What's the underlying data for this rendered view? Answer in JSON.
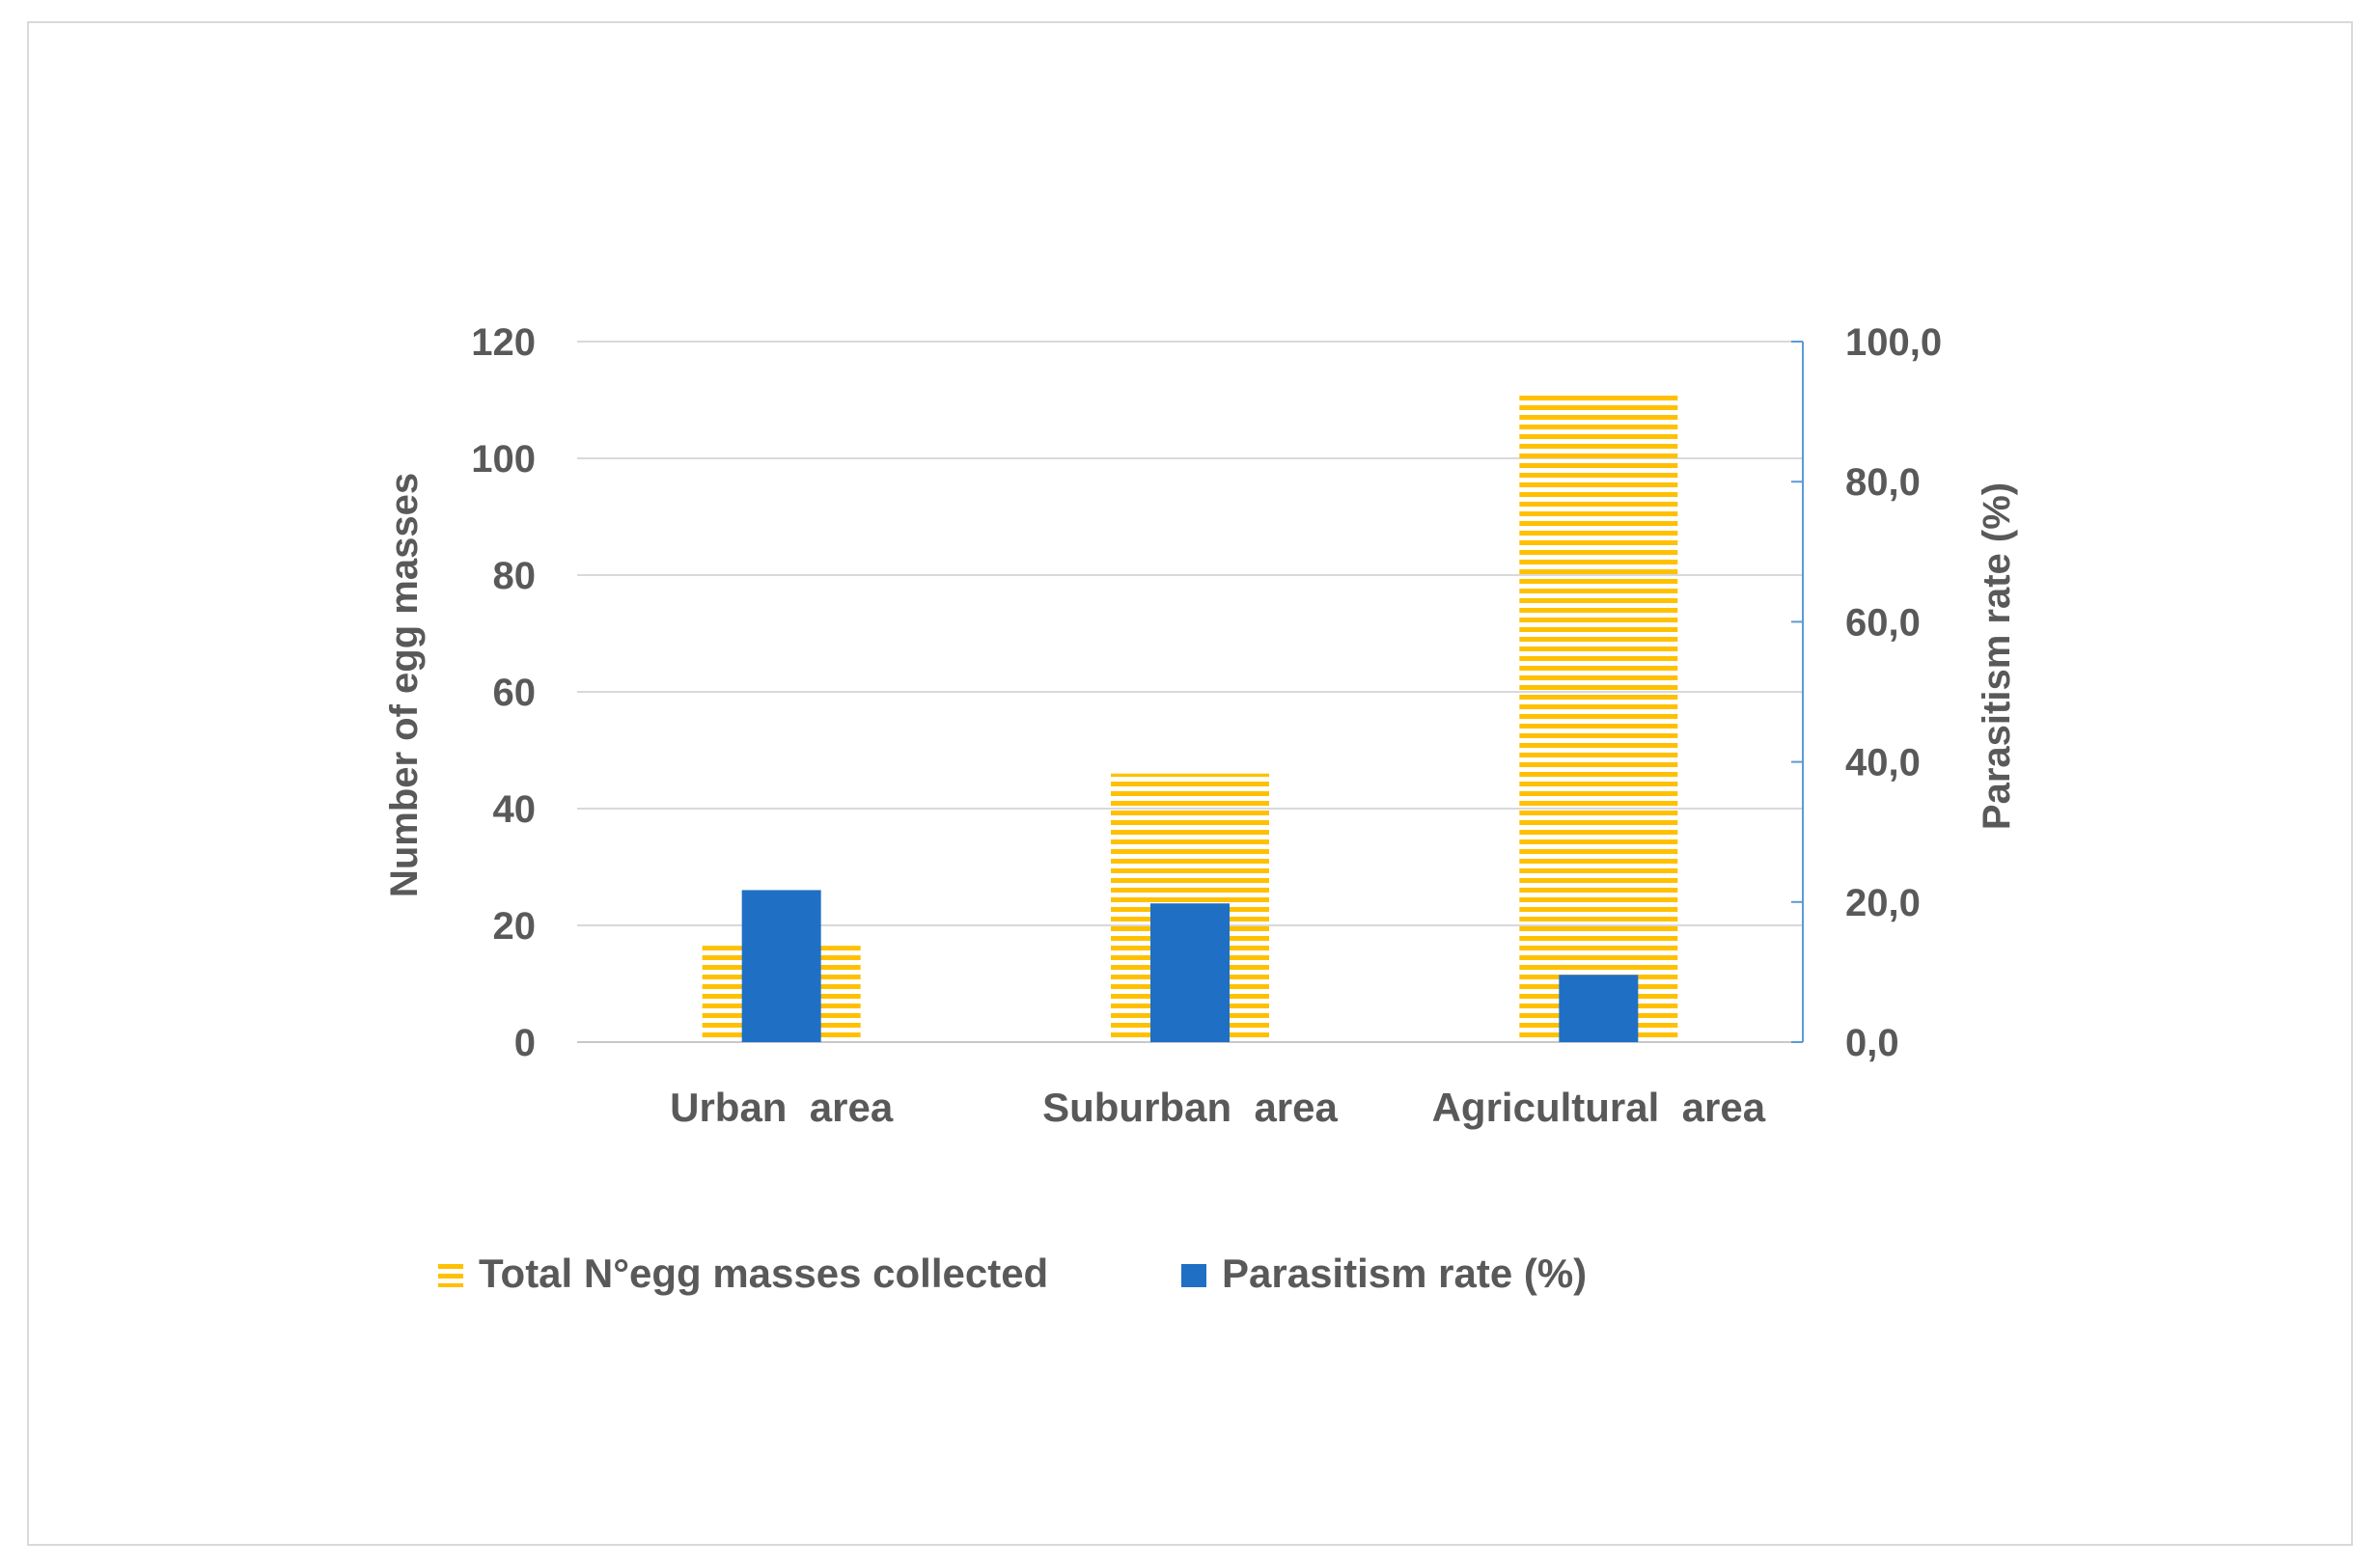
{
  "chart_data": {
    "type": "bar",
    "categories": [
      "Urban  area",
      "Suburban  area",
      "Agricultural  area"
    ],
    "series": [
      {
        "name": "Total N°egg masses collected",
        "axis": "left",
        "values": [
          16.5,
          46,
          111.5
        ],
        "color": "#ffc000",
        "pattern": "horizontal-stripes"
      },
      {
        "name": "Parasitism rate (%)",
        "axis": "right",
        "values": [
          21.7,
          19.8,
          9.6
        ],
        "color": "#1f6fc5"
      }
    ],
    "ylabel": "Number of egg masses",
    "y2label": "Parasitism rate (%)",
    "ylim": [
      0,
      120
    ],
    "y2lim": [
      0,
      100
    ],
    "yticks": [
      "0",
      "20",
      "40",
      "60",
      "80",
      "100",
      "120"
    ],
    "y2ticks": [
      "0,0",
      "20,0",
      "40,0",
      "60,0",
      "80,0",
      "100,0"
    ],
    "grid": true,
    "legend_position": "bottom-left",
    "colors": {
      "text": "#595959",
      "grid": "#d9d9d9",
      "axis2": "#5b9bd5"
    }
  }
}
